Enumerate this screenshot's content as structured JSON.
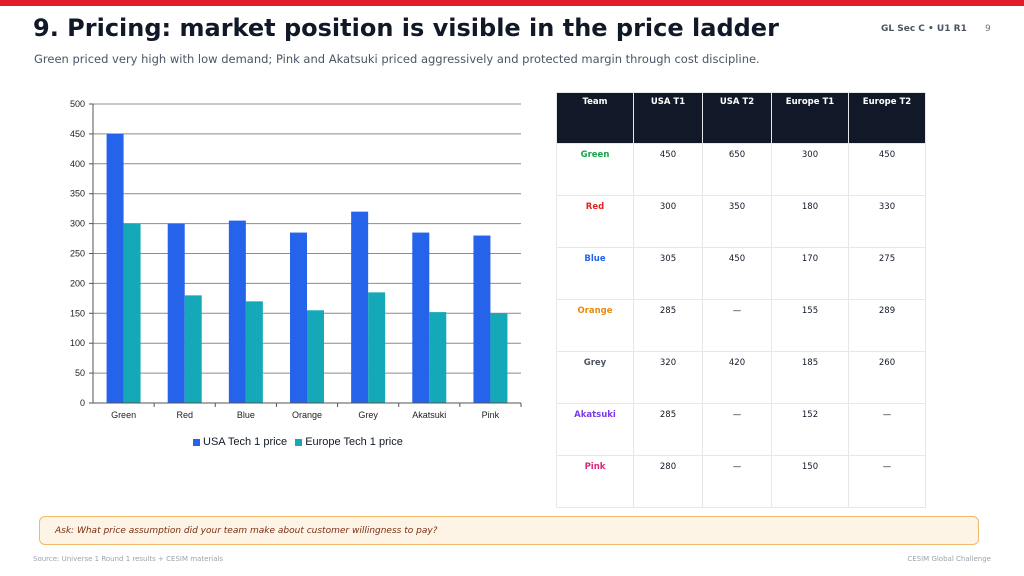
{
  "header": {
    "title": "9. Pricing: market position is visible in the price ladder",
    "course_code": "GL Sec C • U1 R1",
    "page_number": "9",
    "subtitle": "Green priced very high with low demand; Pink and Akatsuki priced aggressively and protected margin through cost discipline."
  },
  "chart_data": {
    "type": "bar",
    "categories": [
      "Green",
      "Red",
      "Blue",
      "Orange",
      "Grey",
      "Akatsuki",
      "Pink"
    ],
    "series": [
      {
        "name": "USA Tech 1 price",
        "values": [
          450,
          300,
          305,
          285,
          320,
          285,
          280
        ],
        "color": "#2563eb"
      },
      {
        "name": "Europe Tech 1 price",
        "values": [
          300,
          180,
          170,
          155,
          185,
          152,
          150
        ],
        "color": "#14a8b8"
      }
    ],
    "ylim": [
      0,
      500
    ],
    "yticks": [
      "0",
      "50",
      "100",
      "150",
      "200",
      "250",
      "300",
      "350",
      "400",
      "450",
      "500"
    ],
    "grid": true,
    "legend": "bottom",
    "title": "",
    "xlabel": "",
    "ylabel": ""
  },
  "table": {
    "headers": [
      "Team",
      "USA T1",
      "USA T2",
      "Europe T1",
      "Europe T2"
    ],
    "rows": [
      {
        "team": "Green",
        "color": "#16a34a",
        "values": [
          "450",
          "650",
          "300",
          "450"
        ]
      },
      {
        "team": "Red",
        "color": "#dc2626",
        "values": [
          "300",
          "350",
          "180",
          "330"
        ]
      },
      {
        "team": "Blue",
        "color": "#2563eb",
        "values": [
          "305",
          "450",
          "170",
          "275"
        ]
      },
      {
        "team": "Orange",
        "color": "#ea8a0c",
        "values": [
          "285",
          "—",
          "155",
          "289"
        ]
      },
      {
        "team": "Grey",
        "color": "#4b5563",
        "values": [
          "320",
          "420",
          "185",
          "260"
        ]
      },
      {
        "team": "Akatsuki",
        "color": "#7c3aed",
        "values": [
          "285",
          "—",
          "152",
          "—"
        ]
      },
      {
        "team": "Pink",
        "color": "#db2777",
        "values": [
          "280",
          "—",
          "150",
          "—"
        ]
      }
    ]
  },
  "callout": {
    "text": "Ask: What price assumption did your team make about customer willingness to pay?"
  },
  "footer": {
    "source": "Source: Universe 1 Round 1 results + CESIM materials",
    "brand": "CESIM Global Challenge"
  },
  "colors": {
    "accent": "#e11d2a",
    "header_dark": "#111827"
  }
}
